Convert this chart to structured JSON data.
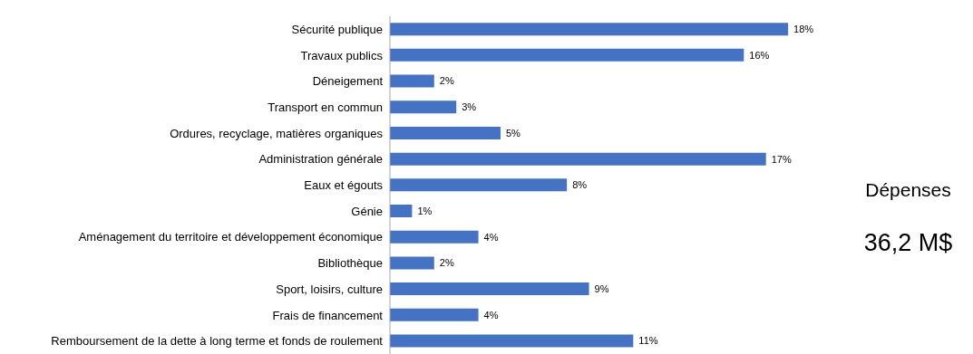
{
  "chart_data": {
    "type": "bar",
    "orientation": "horizontal",
    "categories": [
      "Sécurité publique",
      "Travaux publics",
      "Déneigement",
      "Transport en commun",
      "Ordures, recyclage, matières organiques",
      "Administration générale",
      "Eaux et égouts",
      "Génie",
      "Aménagement du territoire et développement économique",
      "Bibliothèque",
      "Sport, loisirs, culture",
      "Frais de financement",
      "Remboursement de la dette à long terme et fonds de roulement"
    ],
    "values": [
      18,
      16,
      2,
      3,
      5,
      17,
      8,
      1,
      4,
      2,
      9,
      4,
      11
    ],
    "value_labels": [
      "18%",
      "16%",
      "2%",
      "3%",
      "5%",
      "17%",
      "8%",
      "1%",
      "4%",
      "2%",
      "9%",
      "4%",
      "11%"
    ],
    "color": "#4472c4",
    "annotations": [
      "Dépenses",
      "36,2 M$"
    ],
    "legend": false,
    "grid": false
  }
}
